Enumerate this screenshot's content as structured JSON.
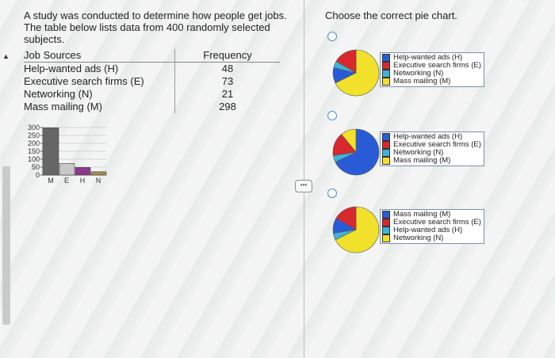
{
  "question": {
    "text": "A study was conducted to determine how people get jobs. The table below lists data from 400 randomly selected subjects."
  },
  "table": {
    "headers": [
      "Job Sources",
      "Frequency"
    ],
    "rows": [
      {
        "source": "Help-wanted ads (H)",
        "frequency": "48"
      },
      {
        "source": "Executive search firms (E)",
        "frequency": "73"
      },
      {
        "source": "Networking (N)",
        "frequency": "21"
      },
      {
        "source": "Mass mailing (M)",
        "frequency": "298"
      }
    ]
  },
  "chart_data": {
    "type": "bar",
    "categories": [
      "M",
      "E",
      "H",
      "N"
    ],
    "values": [
      298,
      73,
      48,
      21
    ],
    "ylim": [
      0,
      300
    ],
    "yticks": [
      "300",
      "250",
      "200",
      "150",
      "100",
      "50",
      "0"
    ],
    "colors": [
      "#666666",
      "#c8c8c8",
      "#8a3a8a",
      "#a58a4a"
    ]
  },
  "prompt": "Choose the correct pie chart.",
  "options": [
    {
      "pie": [
        {
          "value": 298,
          "color": "#f2e12a"
        },
        {
          "value": 48,
          "color": "#2a5bd7"
        },
        {
          "value": 21,
          "color": "#3fb4d8"
        },
        {
          "value": 73,
          "color": "#d8282e"
        }
      ],
      "legend": [
        {
          "label": "Help-wanted ads (H)",
          "color": "#2a5bd7"
        },
        {
          "label": "Executive search firms (E)",
          "color": "#d8282e"
        },
        {
          "label": "Networking (N)",
          "color": "#3fb4d8"
        },
        {
          "label": "Mass mailing (M)",
          "color": "#f2e12a"
        }
      ]
    },
    {
      "pie": [
        {
          "value": 298,
          "color": "#2a5bd7"
        },
        {
          "value": 21,
          "color": "#3fb4d8"
        },
        {
          "value": 73,
          "color": "#d8282e"
        },
        {
          "value": 48,
          "color": "#f2e12a"
        }
      ],
      "legend": [
        {
          "label": "Help-wanted ads (H)",
          "color": "#2a5bd7"
        },
        {
          "label": "Executive search firms (E)",
          "color": "#d8282e"
        },
        {
          "label": "Networking (N)",
          "color": "#3fb4d8"
        },
        {
          "label": "Mass mailing (M)",
          "color": "#f2e12a"
        }
      ]
    },
    {
      "pie": [
        {
          "value": 298,
          "color": "#f2e12a"
        },
        {
          "value": 21,
          "color": "#3fb4d8"
        },
        {
          "value": 48,
          "color": "#2a5bd7"
        },
        {
          "value": 73,
          "color": "#d8282e"
        }
      ],
      "legend": [
        {
          "label": "Mass mailing (M)",
          "color": "#2a5bd7"
        },
        {
          "label": "Executive search firms (E)",
          "color": "#d8282e"
        },
        {
          "label": "Help-wanted ads (H)",
          "color": "#3fb4d8"
        },
        {
          "label": "Networking (N)",
          "color": "#f2e12a"
        }
      ]
    }
  ]
}
